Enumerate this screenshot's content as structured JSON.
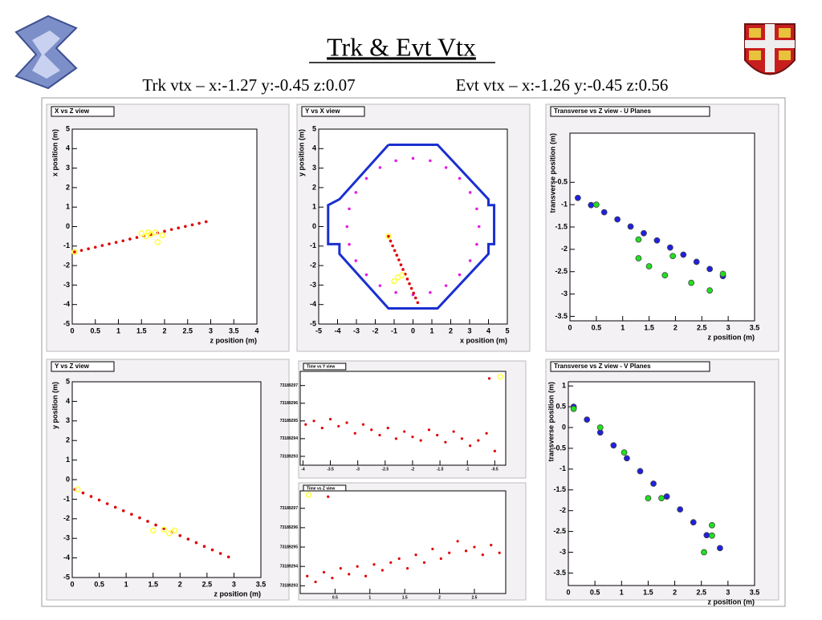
{
  "title": "Trk & Evt Vtx",
  "trk_vtx": "Trk vtx – x:-1.27 y:-0.45 z:0.07",
  "evt_vtx": "Evt vtx – x:-1.26 y:-0.45 z:0.56",
  "chart_data": [
    {
      "type": "scatter",
      "title": "X vs Z view",
      "xlabel": "z position (m)",
      "ylabel": "x position (m)",
      "xlim": [
        0,
        4
      ],
      "ylim": [
        -5,
        5
      ],
      "xticks": [
        0,
        0.5,
        1,
        1.5,
        2,
        2.5,
        3,
        3.5,
        4
      ],
      "yticks": [
        -5,
        -4,
        -3,
        -2,
        -1,
        0,
        1,
        2,
        3,
        4,
        5
      ],
      "series": [
        {
          "color": "#e00000",
          "style": "dot",
          "x": [
            0.05,
            0.2,
            0.35,
            0.5,
            0.65,
            0.8,
            0.95,
            1.1,
            1.25,
            1.4,
            1.55,
            1.7,
            1.85,
            2.0,
            2.15,
            2.3,
            2.45,
            2.6,
            2.75,
            2.9
          ],
          "values": [
            -1.3,
            -1.22,
            -1.14,
            -1.06,
            -0.97,
            -0.89,
            -0.81,
            -0.73,
            -0.64,
            -0.56,
            -0.48,
            -0.4,
            -0.32,
            -0.24,
            -0.15,
            -0.07,
            0.01,
            0.09,
            0.17,
            0.25
          ]
        },
        {
          "color": "#ffff40",
          "style": "ring",
          "x": [
            0.05,
            1.5,
            1.6,
            1.65,
            1.7,
            1.8,
            1.85,
            1.95
          ],
          "values": [
            -1.3,
            -0.35,
            -0.5,
            -0.3,
            -0.4,
            -0.3,
            -0.8,
            -0.45
          ]
        }
      ]
    },
    {
      "type": "scatter",
      "title": "Y vs X view",
      "xlabel": "x position (m)",
      "ylabel": "y position (m)",
      "xlim": [
        -5,
        5
      ],
      "ylim": [
        -5,
        5
      ],
      "xticks": [
        -5,
        -4,
        -3,
        -2,
        -1,
        0,
        1,
        2,
        3,
        4,
        5
      ],
      "yticks": [
        -5,
        -4,
        -3,
        -2,
        -1,
        0,
        1,
        2,
        3,
        4,
        5
      ],
      "series": [
        {
          "color": "#1a2fd0",
          "style": "line",
          "x": [
            -1.3,
            1.3,
            4.0,
            4.0,
            4.3,
            4.3,
            4.0,
            4.0,
            1.3,
            -1.3,
            -3.9,
            -3.9,
            -4.5,
            -4.5,
            -3.9,
            -1.3
          ],
          "values": [
            4.2,
            4.2,
            1.4,
            1.1,
            1.1,
            -0.9,
            -0.9,
            -1.4,
            -4.2,
            -4.2,
            -1.4,
            -0.9,
            -0.9,
            1.1,
            1.4,
            4.2
          ]
        },
        {
          "color": "#e020e0",
          "style": "dot",
          "x": [
            3.5,
            3.38,
            3.03,
            2.47,
            1.75,
            0.91,
            0,
            -0.91,
            -1.75,
            -2.47,
            -3.03,
            -3.38,
            -3.5,
            -3.38,
            -3.03,
            -2.47,
            -1.75,
            -0.91,
            0,
            0.91,
            1.75,
            2.47,
            3.03,
            3.38
          ],
          "values": [
            0,
            0.91,
            1.75,
            2.47,
            3.03,
            3.38,
            3.5,
            3.38,
            3.03,
            2.47,
            1.75,
            0.91,
            0,
            -0.91,
            -1.75,
            -2.47,
            -3.03,
            -3.38,
            -3.5,
            -3.38,
            -3.03,
            -2.47,
            -1.75,
            -0.91
          ]
        },
        {
          "color": "#e00000",
          "style": "dot",
          "x": [
            -1.3,
            -1.19,
            -1.08,
            -0.97,
            -0.86,
            -0.75,
            -0.64,
            -0.53,
            -0.41,
            -0.3,
            -0.19,
            -0.08,
            0.03,
            0.14,
            0.25
          ],
          "values": [
            -0.5,
            -0.74,
            -0.99,
            -1.23,
            -1.47,
            -1.71,
            -1.96,
            -2.2,
            -2.44,
            -2.69,
            -2.93,
            -3.17,
            -3.41,
            -3.66,
            -3.9
          ]
        },
        {
          "color": "#ffff40",
          "style": "ring",
          "x": [
            -1.3,
            -1.0,
            -0.8,
            -0.6
          ],
          "values": [
            -0.5,
            -2.8,
            -2.6,
            -2.5
          ]
        }
      ]
    },
    {
      "type": "scatter",
      "title": "Transverse vs Z view - U Planes",
      "xlabel": "z position (m)",
      "ylabel": "transverse position (m)",
      "xlim": [
        0,
        3.5
      ],
      "ylim": [
        -3.6,
        0.6
      ],
      "xticks": [
        0,
        0.5,
        1,
        1.5,
        2,
        2.5,
        3,
        3.5
      ],
      "yticks": [
        -3.5,
        -3,
        -2.5,
        -2,
        -1.5,
        -1,
        -0.5
      ],
      "series": [
        {
          "color": "#2020e0",
          "style": "big",
          "x": [
            0.15,
            0.4,
            0.65,
            0.9,
            1.15,
            1.4,
            1.65,
            1.9,
            2.15,
            2.4,
            2.65,
            2.9
          ],
          "values": [
            -0.85,
            -1.01,
            -1.17,
            -1.33,
            -1.49,
            -1.64,
            -1.8,
            -1.96,
            -2.12,
            -2.28,
            -2.44,
            -2.6
          ]
        },
        {
          "color": "#20e020",
          "style": "big",
          "x": [
            0.5,
            1.3,
            1.3,
            1.5,
            1.8,
            1.95,
            2.3,
            2.65,
            2.9
          ],
          "values": [
            -1.0,
            -1.78,
            -2.2,
            -2.38,
            -2.58,
            -2.15,
            -2.75,
            -2.92,
            -2.55
          ]
        }
      ]
    },
    {
      "type": "scatter",
      "title": "Y vs Z view",
      "xlabel": "z position (m)",
      "ylabel": "y position (m)",
      "xlim": [
        0,
        3.5
      ],
      "ylim": [
        -5,
        5
      ],
      "xticks": [
        0,
        0.5,
        1,
        1.5,
        2,
        2.5,
        3,
        3.5
      ],
      "yticks": [
        -5,
        -4,
        -3,
        -2,
        -1,
        0,
        1,
        2,
        3,
        4,
        5
      ],
      "series": [
        {
          "color": "#e00000",
          "style": "dot",
          "x": [
            0.05,
            0.2,
            0.35,
            0.5,
            0.65,
            0.8,
            0.95,
            1.1,
            1.25,
            1.4,
            1.55,
            1.7,
            1.85,
            2.0,
            2.15,
            2.3,
            2.45,
            2.6,
            2.75,
            2.9
          ],
          "values": [
            -0.5,
            -0.68,
            -0.86,
            -1.04,
            -1.23,
            -1.41,
            -1.59,
            -1.77,
            -1.95,
            -2.13,
            -2.32,
            -2.5,
            -2.68,
            -2.86,
            -3.04,
            -3.22,
            -3.41,
            -3.59,
            -3.77,
            -3.95
          ]
        },
        {
          "color": "#ffff40",
          "style": "ring",
          "x": [
            0.1,
            1.5,
            1.7,
            1.8,
            1.9
          ],
          "values": [
            -0.5,
            -2.6,
            -2.55,
            -2.75,
            -2.6
          ]
        }
      ]
    },
    {
      "type": "scatter",
      "title": "Time vs Y view",
      "xlim": [
        -4.05,
        -0.3
      ],
      "ylim": [
        73189292.5,
        73189297.8
      ],
      "xticks": [
        -4,
        -3.5,
        -3,
        -2.5,
        -2,
        -1.5,
        -1,
        -0.5
      ],
      "yticks": [
        73189293,
        73189294,
        73189295,
        73189296,
        73189297
      ],
      "series": [
        {
          "color": "#e00000",
          "style": "dot",
          "x": [
            -3.95,
            -3.8,
            -3.65,
            -3.5,
            -3.35,
            -3.2,
            -3.05,
            -2.9,
            -2.75,
            -2.6,
            -2.45,
            -2.3,
            -2.15,
            -2.0,
            -1.85,
            -1.7,
            -1.55,
            -1.4,
            -1.25,
            -1.1,
            -0.95,
            -0.8,
            -0.65,
            -0.5,
            -0.6
          ],
          "values": [
            73189294.8,
            73189295.0,
            73189294.6,
            73189295.1,
            73189294.7,
            73189294.9,
            73189294.3,
            73189294.8,
            73189294.5,
            73189294.2,
            73189294.6,
            73189294.0,
            73189294.4,
            73189294.1,
            73189293.9,
            73189294.5,
            73189294.2,
            73189293.8,
            73189294.4,
            73189294.0,
            73189293.6,
            73189293.9,
            73189294.3,
            73189293.3,
            73189297.4
          ]
        },
        {
          "color": "#ffff40",
          "style": "ring",
          "x": [
            -0.4
          ],
          "values": [
            73189297.5
          ]
        }
      ]
    },
    {
      "type": "scatter",
      "title": "Time vs Z view",
      "xlim": [
        0,
        2.95
      ],
      "ylim": [
        73189292.6,
        73189297.9
      ],
      "xticks": [
        0.5,
        1,
        1.5,
        2,
        2.5
      ],
      "yticks": [
        73189293,
        73189294,
        73189295,
        73189296,
        73189297
      ],
      "series": [
        {
          "color": "#e00000",
          "style": "dot",
          "x": [
            0.1,
            0.22,
            0.34,
            0.46,
            0.58,
            0.7,
            0.82,
            0.94,
            1.06,
            1.18,
            1.3,
            1.42,
            1.54,
            1.66,
            1.78,
            1.9,
            2.02,
            2.14,
            2.26,
            2.38,
            2.5,
            2.62,
            2.74,
            2.86,
            0.4
          ],
          "values": [
            73189293.5,
            73189293.2,
            73189293.7,
            73189293.4,
            73189293.9,
            73189293.6,
            73189294.0,
            73189293.5,
            73189294.1,
            73189293.8,
            73189294.2,
            73189294.4,
            73189293.9,
            73189294.6,
            73189294.2,
            73189294.9,
            73189294.4,
            73189294.7,
            73189295.3,
            73189294.8,
            73189295.0,
            73189294.6,
            73189295.1,
            73189294.7,
            73189297.6
          ]
        },
        {
          "color": "#ffff40",
          "style": "ring",
          "x": [
            0.12
          ],
          "values": [
            73189297.7
          ]
        }
      ]
    },
    {
      "type": "scatter",
      "title": "Transverse vs Z view - V Planes",
      "xlabel": "z position (m)",
      "ylabel": "transverse position (m)",
      "xlim": [
        0,
        3.5
      ],
      "ylim": [
        -3.8,
        1.1
      ],
      "xticks": [
        0,
        0.5,
        1,
        1.5,
        2,
        2.5,
        3,
        3.5
      ],
      "yticks": [
        -3.5,
        -3,
        -2.5,
        -2,
        -1.5,
        -1,
        -0.5,
        0,
        0.5,
        1
      ],
      "series": [
        {
          "color": "#2020e0",
          "style": "big",
          "x": [
            0.1,
            0.35,
            0.6,
            0.85,
            1.1,
            1.35,
            1.6,
            1.85,
            2.1,
            2.35,
            2.6,
            2.85
          ],
          "values": [
            0.5,
            0.19,
            -0.12,
            -0.43,
            -0.74,
            -1.05,
            -1.35,
            -1.66,
            -1.97,
            -2.28,
            -2.59,
            -2.9
          ]
        },
        {
          "color": "#20e020",
          "style": "big",
          "x": [
            0.1,
            0.6,
            1.05,
            1.5,
            1.75,
            2.7,
            2.7,
            2.55
          ],
          "values": [
            0.45,
            0.0,
            -0.6,
            -1.7,
            -1.7,
            -2.35,
            -2.6,
            -3.0
          ]
        }
      ]
    }
  ]
}
